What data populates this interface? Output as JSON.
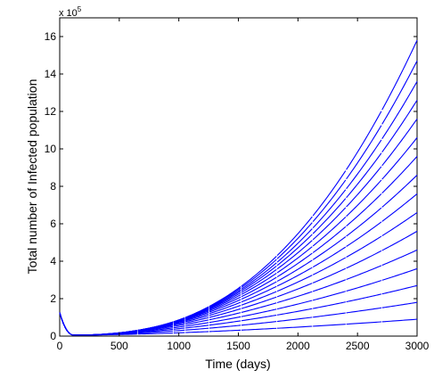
{
  "chart_data": {
    "type": "line",
    "xlabel": "Time (days)",
    "ylabel": "Total number of Infected population",
    "y_multiplier_base": "x 10",
    "y_multiplier_exp": "5",
    "xlim": [
      0,
      3000
    ],
    "ylim": [
      0,
      1700000
    ],
    "x_ticks": [
      0,
      500,
      1000,
      1500,
      2000,
      2500,
      3000
    ],
    "y_ticks": [
      0,
      200000,
      400000,
      600000,
      800000,
      1000000,
      1200000,
      1400000,
      1600000
    ],
    "x_tick_labels": [
      "0",
      "500",
      "1000",
      "1500",
      "2000",
      "2500",
      "3000"
    ],
    "y_tick_labels": [
      "0",
      "2",
      "4",
      "6",
      "8",
      "10",
      "12",
      "14",
      "16"
    ],
    "grid": false,
    "line_color": "#0000ff",
    "series_end_values": [
      90000,
      180000,
      270000,
      360000,
      460000,
      560000,
      660000,
      760000,
      860000,
      960000,
      1060000,
      1160000,
      1260000,
      1360000,
      1470000,
      1580000
    ],
    "initial_value": 120000,
    "minimum_value": 5000,
    "minimum_time": 120,
    "break_times": [
      650,
      950,
      1050,
      1250,
      1520,
      1820,
      2120,
      2400,
      2700
    ]
  }
}
